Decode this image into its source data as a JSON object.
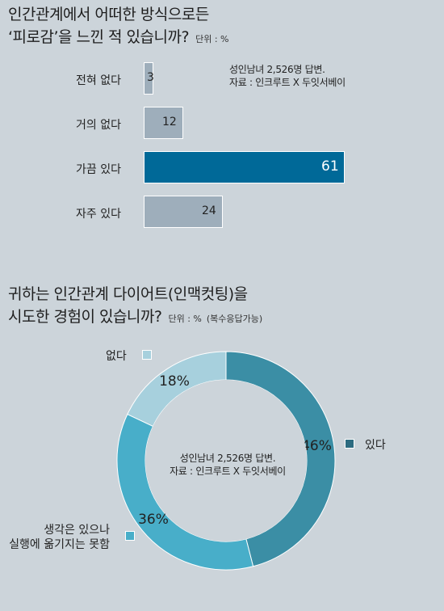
{
  "chart1": {
    "title_line1": "인간관계에서 어떠한 방식으로든",
    "title_line2": "‘피로감’을 느낀 적 있습니까?",
    "unit": "단위 : %",
    "note_line1": "성인남녀 2,526명 답변.",
    "note_line2": "자료 : 인크루트 X 두잇서베이",
    "colors": {
      "normal": "#9eaebb",
      "highlight": "#006998",
      "border": "#ffffff"
    }
  },
  "chart2": {
    "title_line1": "귀하는 인간관계 다이어트(인맥컷팅)을",
    "title_line2": "시도한 경험이 있습니까?",
    "unit": "단위 : %",
    "unit_extra": "(복수응답가능)",
    "note_line1": "성인남녀 2,526명 답변.",
    "note_line2": "자료 : 인크루트 X 두잇서베이",
    "legend": {
      "yes": "있다",
      "no": "없다",
      "want_line1": "생각은 있으나",
      "want_line2": "실행에 옮기지는 못함"
    }
  },
  "chart_data": [
    {
      "type": "bar",
      "orientation": "horizontal",
      "categories": [
        "전혀 없다",
        "거의 없다",
        "가끔 있다",
        "자주 있다"
      ],
      "values": [
        3,
        12,
        61,
        24
      ],
      "highlight": "가끔 있다",
      "title": "인간관계에서 어떠한 방식으로든 ‘피로감’을 느낀 적 있습니까?",
      "unit": "%"
    },
    {
      "type": "pie",
      "style": "donut",
      "categories": [
        "있다",
        "생각은 있으나 실행에 옮기지는 못함",
        "없다"
      ],
      "values": [
        46,
        36,
        18
      ],
      "value_labels": [
        "46%",
        "36%",
        "18%"
      ],
      "colors": [
        "#3b8ea5",
        "#48aec9",
        "#a7d0dd"
      ],
      "title": "귀하는 인간관계 다이어트(인맥컷팅)을 시도한 경험이 있습니까?",
      "unit": "%"
    }
  ]
}
